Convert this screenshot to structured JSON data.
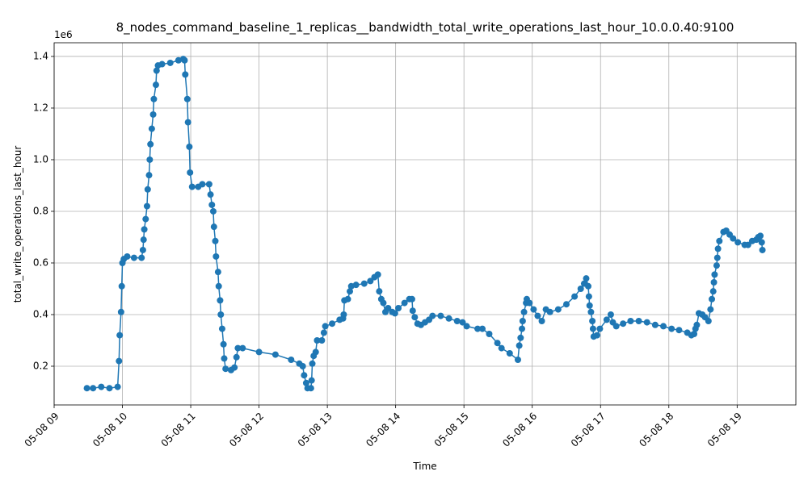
{
  "chart_data": {
    "type": "line",
    "title": "8_nodes_command_baseline_1_replicas__bandwidth_total_write_operations_last_hour_10.0.0.40:9100",
    "xlabel": "Time",
    "ylabel": "total_write_operations_last_hour",
    "y_offset_label": "1e6",
    "color": "#1f77b4",
    "marker": true,
    "grid": true,
    "xlim": [
      9.0,
      19.86
    ],
    "ylim": [
      0.05,
      1.453
    ],
    "xticks": [
      {
        "value": 9,
        "label": "05-08 09"
      },
      {
        "value": 10,
        "label": "05-08 10"
      },
      {
        "value": 11,
        "label": "05-08 11"
      },
      {
        "value": 12,
        "label": "05-08 12"
      },
      {
        "value": 13,
        "label": "05-08 13"
      },
      {
        "value": 14,
        "label": "05-08 14"
      },
      {
        "value": 15,
        "label": "05-08 15"
      },
      {
        "value": 16,
        "label": "05-08 16"
      },
      {
        "value": 17,
        "label": "05-08 17"
      },
      {
        "value": 18,
        "label": "05-08 18"
      },
      {
        "value": 19,
        "label": "05-08 19"
      }
    ],
    "yticks": [
      0.2,
      0.4,
      0.6,
      0.8,
      {
        "value": 1,
        "label": "1.0"
      },
      1.2,
      1.4
    ],
    "x": [
      9.48,
      9.57,
      9.69,
      9.81,
      9.93,
      9.95,
      9.96,
      9.98,
      9.99,
      10.0,
      10.02,
      10.07,
      10.17,
      10.28,
      10.3,
      10.31,
      10.32,
      10.34,
      10.36,
      10.37,
      10.39,
      10.4,
      10.41,
      10.43,
      10.45,
      10.46,
      10.49,
      10.5,
      10.52,
      10.58,
      10.7,
      10.82,
      10.89,
      10.91,
      10.92,
      10.95,
      10.96,
      10.98,
      10.99,
      11.02,
      11.11,
      11.17,
      11.27,
      11.29,
      11.31,
      11.33,
      11.34,
      11.36,
      11.37,
      11.4,
      11.41,
      11.43,
      11.44,
      11.46,
      11.48,
      11.49,
      11.51,
      11.59,
      11.64,
      11.67,
      11.69,
      11.76,
      12.0,
      12.24,
      12.47,
      12.59,
      12.64,
      12.66,
      12.69,
      12.71,
      12.76,
      12.77,
      12.78,
      12.8,
      12.83,
      12.85,
      12.92,
      12.95,
      12.97,
      13.07,
      13.18,
      13.23,
      13.24,
      13.25,
      13.3,
      13.33,
      13.35,
      13.42,
      13.54,
      13.63,
      13.69,
      13.74,
      13.76,
      13.79,
      13.82,
      13.85,
      13.89,
      13.95,
      13.99,
      14.04,
      14.13,
      14.2,
      14.24,
      14.25,
      14.28,
      14.32,
      14.37,
      14.43,
      14.49,
      14.54,
      14.66,
      14.78,
      14.9,
      14.98,
      15.04,
      15.2,
      15.27,
      15.37,
      15.49,
      15.55,
      15.67,
      15.79,
      15.81,
      15.83,
      15.85,
      15.86,
      15.88,
      15.91,
      15.92,
      15.96,
      16.02,
      16.08,
      16.14,
      16.2,
      16.26,
      16.38,
      16.5,
      16.62,
      16.71,
      16.76,
      16.79,
      16.82,
      16.83,
      16.84,
      16.86,
      16.88,
      16.89,
      16.9,
      16.95,
      16.99,
      17.09,
      17.15,
      17.18,
      17.23,
      17.33,
      17.44,
      17.56,
      17.68,
      17.8,
      17.92,
      18.04,
      18.15,
      18.27,
      18.33,
      18.37,
      18.39,
      18.41,
      18.44,
      18.49,
      18.53,
      18.58,
      18.61,
      18.63,
      18.65,
      18.66,
      18.67,
      18.7,
      18.71,
      18.72,
      18.74,
      18.8,
      18.84,
      18.89,
      18.94,
      19.01,
      19.11,
      19.16,
      19.22,
      19.28,
      19.31,
      19.34,
      19.36,
      19.37
    ],
    "values": [
      0.115,
      0.115,
      0.12,
      0.115,
      0.12,
      0.22,
      0.32,
      0.41,
      0.51,
      0.6,
      0.615,
      0.625,
      0.62,
      0.62,
      0.65,
      0.69,
      0.73,
      0.77,
      0.82,
      0.885,
      0.94,
      1.0,
      1.06,
      1.12,
      1.175,
      1.235,
      1.29,
      1.345,
      1.365,
      1.37,
      1.375,
      1.385,
      1.39,
      1.385,
      1.33,
      1.235,
      1.145,
      1.05,
      0.95,
      0.895,
      0.895,
      0.905,
      0.905,
      0.865,
      0.825,
      0.8,
      0.74,
      0.685,
      0.625,
      0.565,
      0.51,
      0.455,
      0.4,
      0.345,
      0.285,
      0.23,
      0.19,
      0.185,
      0.195,
      0.235,
      0.27,
      0.27,
      0.255,
      0.245,
      0.225,
      0.21,
      0.2,
      0.165,
      0.135,
      0.115,
      0.115,
      0.145,
      0.21,
      0.24,
      0.255,
      0.3,
      0.3,
      0.33,
      0.355,
      0.365,
      0.38,
      0.385,
      0.4,
      0.455,
      0.46,
      0.49,
      0.51,
      0.515,
      0.52,
      0.53,
      0.545,
      0.555,
      0.49,
      0.46,
      0.445,
      0.41,
      0.425,
      0.41,
      0.405,
      0.425,
      0.445,
      0.46,
      0.46,
      0.415,
      0.39,
      0.365,
      0.36,
      0.37,
      0.38,
      0.395,
      0.395,
      0.385,
      0.375,
      0.37,
      0.355,
      0.345,
      0.345,
      0.325,
      0.29,
      0.27,
      0.25,
      0.225,
      0.28,
      0.31,
      0.345,
      0.375,
      0.41,
      0.445,
      0.46,
      0.445,
      0.42,
      0.395,
      0.375,
      0.42,
      0.41,
      0.42,
      0.44,
      0.47,
      0.5,
      0.52,
      0.54,
      0.51,
      0.47,
      0.435,
      0.41,
      0.375,
      0.345,
      0.315,
      0.32,
      0.345,
      0.38,
      0.4,
      0.37,
      0.355,
      0.365,
      0.375,
      0.375,
      0.37,
      0.36,
      0.355,
      0.345,
      0.34,
      0.33,
      0.32,
      0.325,
      0.345,
      0.36,
      0.405,
      0.4,
      0.39,
      0.375,
      0.42,
      0.46,
      0.49,
      0.525,
      0.555,
      0.59,
      0.62,
      0.655,
      0.685,
      0.72,
      0.725,
      0.71,
      0.695,
      0.68,
      0.67,
      0.67,
      0.685,
      0.69,
      0.7,
      0.705,
      0.68,
      0.65
    ]
  }
}
